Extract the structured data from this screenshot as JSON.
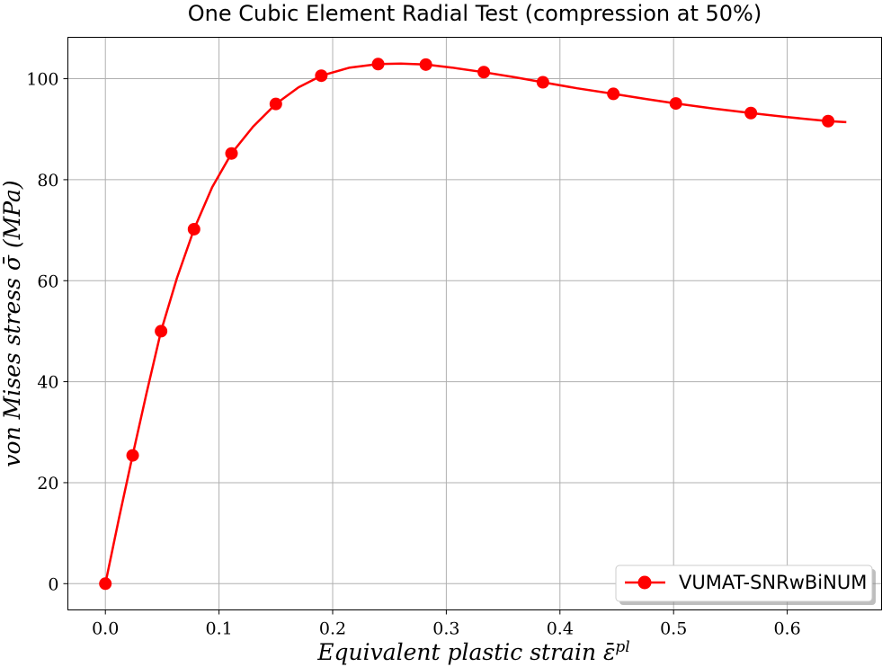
{
  "chart_data": {
    "type": "line",
    "title": "One Cubic Element Radial Test (compression at 50%)",
    "xlabel": "Equivalent plastic strain ε̄",
    "xlabel_sup": "pl",
    "ylabel": "von Mises stress σ̄ (MPa)",
    "xlim": [
      -0.033,
      0.683
    ],
    "ylim": [
      -5.2,
      108.2
    ],
    "xticks": [
      0.0,
      0.1,
      0.2,
      0.3,
      0.4,
      0.5,
      0.6
    ],
    "xtick_labels": [
      "0.0",
      "0.1",
      "0.2",
      "0.3",
      "0.4",
      "0.5",
      "0.6"
    ],
    "yticks": [
      0,
      20,
      40,
      60,
      80,
      100
    ],
    "ytick_labels": [
      "0",
      "20",
      "40",
      "60",
      "80",
      "100"
    ],
    "grid": true,
    "legend_position": "lower-right",
    "colors": {
      "series": "#ff0000"
    },
    "series": [
      {
        "name": "VUMAT-SNRwBiNUM",
        "marker": "circle",
        "curve": {
          "x": [
            0.0,
            0.012,
            0.024,
            0.036,
            0.049,
            0.063,
            0.078,
            0.094,
            0.111,
            0.13,
            0.15,
            0.17,
            0.19,
            0.215,
            0.24,
            0.26,
            0.282,
            0.305,
            0.333,
            0.36,
            0.385,
            0.415,
            0.447,
            0.475,
            0.502,
            0.535,
            0.568,
            0.6,
            0.636,
            0.652
          ],
          "y": [
            0.0,
            13.0,
            25.4,
            37.5,
            50.0,
            60.5,
            70.2,
            78.5,
            85.2,
            90.5,
            95.0,
            98.3,
            100.6,
            102.2,
            102.9,
            103.0,
            102.8,
            102.2,
            101.3,
            100.3,
            99.3,
            98.1,
            97.0,
            96.0,
            95.1,
            94.1,
            93.2,
            92.4,
            91.6,
            91.4
          ]
        },
        "markers": {
          "x": [
            0.0,
            0.024,
            0.049,
            0.078,
            0.111,
            0.15,
            0.19,
            0.24,
            0.282,
            0.333,
            0.385,
            0.447,
            0.502,
            0.568,
            0.636
          ],
          "y": [
            0.0,
            25.4,
            50.0,
            70.2,
            85.2,
            95.0,
            100.6,
            102.9,
            102.8,
            101.3,
            99.3,
            97.0,
            95.1,
            93.2,
            91.6
          ]
        }
      }
    ]
  }
}
